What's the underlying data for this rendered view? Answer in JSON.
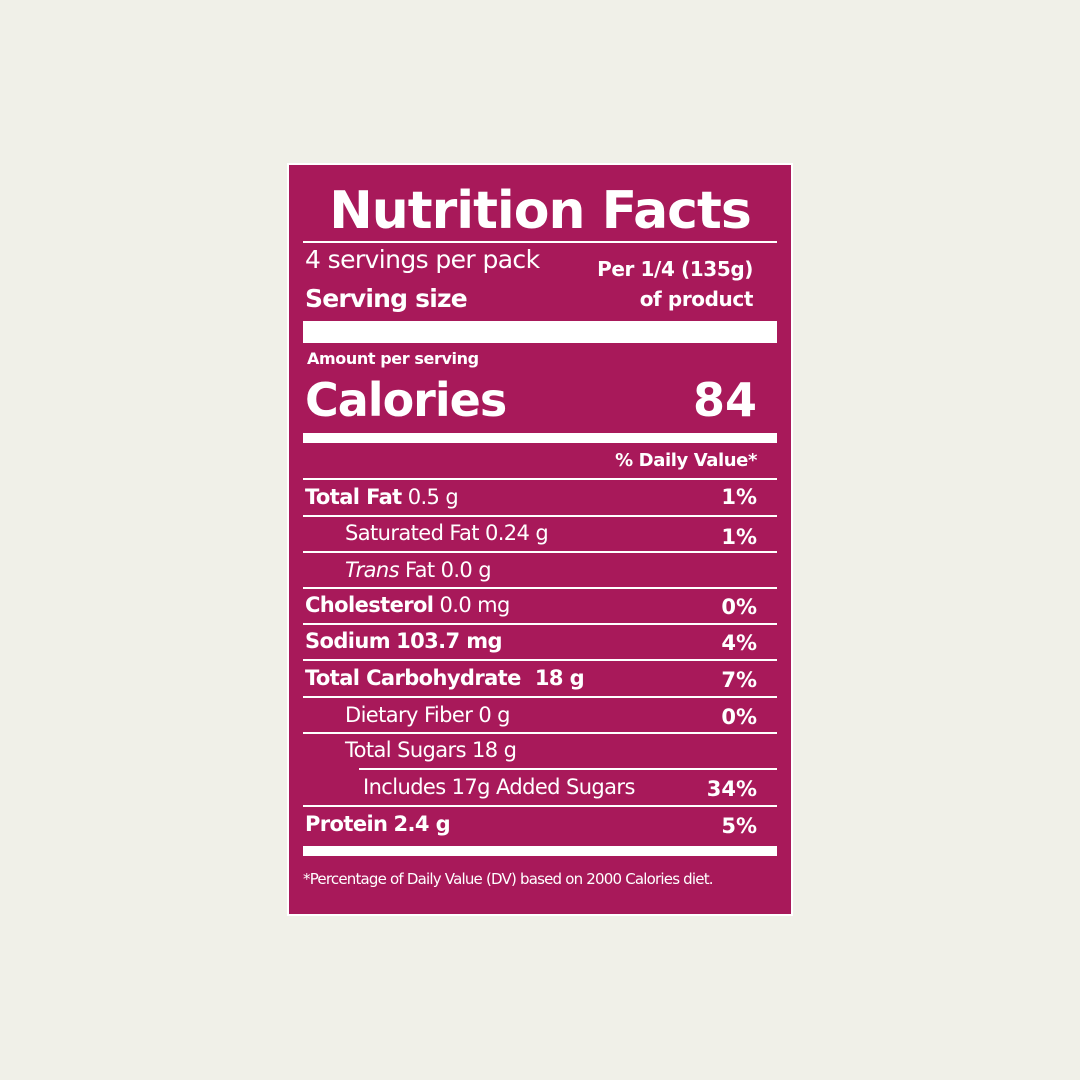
{
  "label": {
    "title": "Nutrition Facts",
    "servings_per_pack": "4 servings per pack",
    "serving_size_label": "Serving size",
    "serving_size_line1": "Per 1/4 (135g)",
    "serving_size_line2": "of product",
    "amount_per_serving": "Amount per serving",
    "calories_label": "Calories",
    "calories_value": "84",
    "daily_value_header": "% Daily Value*",
    "nutrients": [
      {
        "name": "Total Fat",
        "amount": "0.5 g",
        "dv": "1%"
      },
      {
        "name": "Saturated Fat",
        "amount": "0.24 g",
        "dv": "1%"
      },
      {
        "name_italic": "Trans",
        "name": "Fat",
        "amount": "0.0 g",
        "dv": ""
      },
      {
        "name": "Cholesterol",
        "amount": "0.0 mg",
        "dv": "0%"
      },
      {
        "name": "Sodium",
        "amount": "103.7 mg",
        "dv": "4%"
      },
      {
        "name": "Total Carbohydrate",
        "amount": "18 g",
        "dv": "7%"
      },
      {
        "name": "Dietary Fiber",
        "amount": "0 g",
        "dv": "0%"
      },
      {
        "name": "Total Sugars",
        "amount": "18 g",
        "dv": ""
      },
      {
        "name": "Includes 17g Added Sugars",
        "amount": "",
        "dv": "34%"
      },
      {
        "name": "Protein",
        "amount": "2.4 g",
        "dv": "5%"
      }
    ],
    "footnote": "*Percentage of Daily Value (DV) based on 2000 Calories diet.",
    "colors": {
      "panel": "#a8195a",
      "text": "#ffffff",
      "page": "#f0f0e8"
    }
  }
}
